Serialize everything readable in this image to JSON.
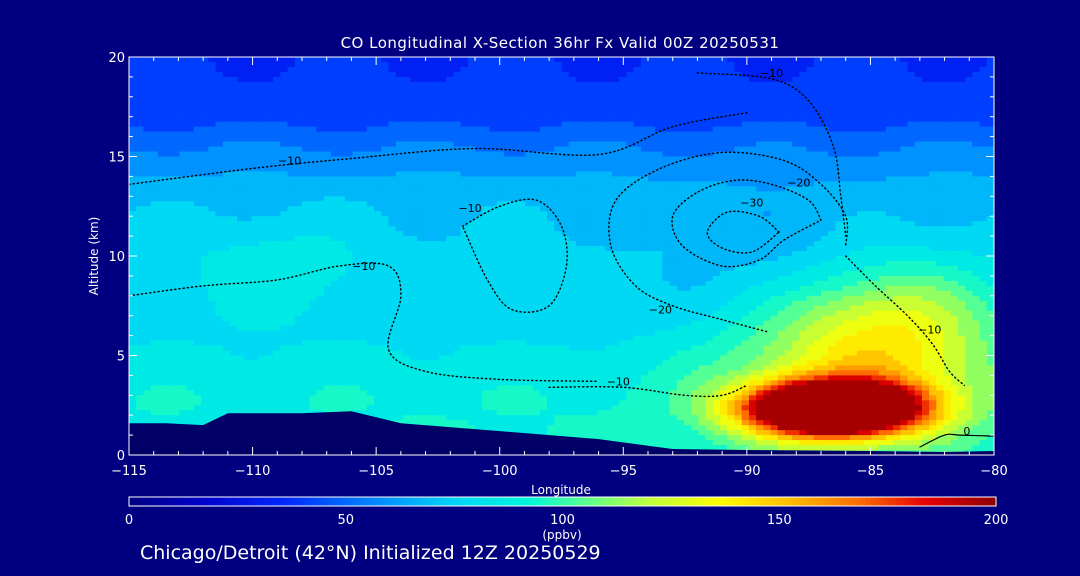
{
  "title": "CO Longitudinal X-Section 36hr  Fx Valid 00Z 20250531",
  "footer": "Chicago/Detroit (42°N) Initialized 12Z 20250529",
  "colors": {
    "background": "#000080",
    "terrain": "#000066",
    "axis": "#ffffff",
    "contour": "#000000"
  },
  "chart_data": {
    "type": "heatmap",
    "title": "CO Longitudinal X-Section 36hr  Fx Valid 00Z 20250531",
    "xlabel": "Longitude",
    "ylabel": "Altitude (km)",
    "xlim": [
      -115,
      -80
    ],
    "ylim": [
      0,
      20
    ],
    "xticks": [
      -115,
      -110,
      -105,
      -100,
      -95,
      -90,
      -85,
      -80
    ],
    "xtick_labels": [
      "−115",
      "−110",
      "−105",
      "−100",
      "−95",
      "−90",
      "−85",
      "−80"
    ],
    "yticks": [
      0,
      5,
      10,
      15,
      20
    ],
    "colorbar": {
      "label": "(ppbv)",
      "min": 0,
      "max": 200,
      "ticks": [
        0,
        50,
        100,
        150,
        200
      ]
    },
    "co_field": {
      "background_by_altitude_km": [
        [
          0,
          92
        ],
        [
          3,
          90
        ],
        [
          6,
          80
        ],
        [
          10,
          76
        ],
        [
          13,
          70
        ],
        [
          15,
          58
        ],
        [
          17,
          42
        ],
        [
          20,
          36
        ]
      ],
      "features": [
        {
          "center_lon": -86.5,
          "center_alt_km": 2.3,
          "peak_ppbv": 205,
          "radius_lon": 3.4,
          "radius_alt_km": 1.3
        },
        {
          "center_lon": -85.5,
          "center_alt_km": 4.5,
          "peak_ppbv": 45,
          "radius_lon": 5.5,
          "radius_alt_km": 3.5
        },
        {
          "center_lon": -84.0,
          "center_alt_km": 7.0,
          "peak_ppbv": 30,
          "radius_lon": 4.0,
          "radius_alt_km": 3.0
        },
        {
          "center_lon": -109.0,
          "center_alt_km": 9.5,
          "peak_ppbv": 12,
          "radius_lon": 3.5,
          "radius_alt_km": 2.2
        },
        {
          "center_lon": -89.0,
          "center_alt_km": 9.5,
          "peak_ppbv": -9,
          "radius_lon": 5.0,
          "radius_alt_km": 4.0
        }
      ]
    },
    "contours": [
      {
        "label": "-10",
        "label_lon": -108.5,
        "label_alt": 14.6,
        "points": [
          [
            -115,
            13.6
          ],
          [
            -110,
            14.4
          ],
          [
            -106,
            14.9
          ],
          [
            -101,
            15.4
          ],
          [
            -96,
            15.1
          ],
          [
            -93,
            16.5
          ],
          [
            -90,
            17.2
          ]
        ]
      },
      {
        "label": "-10",
        "label_lon": -101.2,
        "label_alt": 12.2,
        "points": [
          [
            -101.5,
            11.5
          ],
          [
            -100,
            12.5
          ],
          [
            -98.5,
            12.8
          ],
          [
            -97.5,
            11.5
          ],
          [
            -97.3,
            9.5
          ],
          [
            -98,
            7.5
          ],
          [
            -99.5,
            7.3
          ],
          [
            -100.5,
            8.8
          ],
          [
            -101.5,
            11.5
          ]
        ]
      },
      {
        "label": "-10",
        "label_lon": -105.5,
        "label_alt": 9.3,
        "points": [
          [
            -115,
            8.0
          ],
          [
            -112,
            8.5
          ],
          [
            -109,
            8.8
          ],
          [
            -106.5,
            9.5
          ],
          [
            -104.5,
            9.5
          ],
          [
            -104,
            8
          ],
          [
            -104.5,
            5.3
          ],
          [
            -103,
            4.2
          ],
          [
            -100,
            3.8
          ],
          [
            -96,
            3.7
          ]
        ]
      },
      {
        "label": "-10",
        "label_lon": -95.2,
        "label_alt": 3.5,
        "points": [
          [
            -98,
            3.4
          ],
          [
            -95,
            3.4
          ],
          [
            -92.5,
            3.0
          ],
          [
            -91,
            3.0
          ],
          [
            -90,
            3.5
          ]
        ]
      },
      {
        "label": "-20",
        "label_lon": -93.5,
        "label_alt": 7.1,
        "points": [
          [
            -89.2,
            6.2
          ],
          [
            -91,
            6.8
          ],
          [
            -93,
            7.5
          ],
          [
            -94.5,
            8.5
          ],
          [
            -95.5,
            10.5
          ],
          [
            -95.3,
            12.8
          ],
          [
            -93.5,
            14.4
          ],
          [
            -91,
            15.2
          ],
          [
            -88.5,
            14.8
          ],
          [
            -87,
            13.6
          ],
          [
            -86,
            12.0
          ],
          [
            -86,
            10.5
          ]
        ]
      },
      {
        "label": "-20",
        "label_lon": -87.9,
        "label_alt": 13.5,
        "points": [
          [
            -87,
            11.8
          ],
          [
            -87.5,
            12.8
          ],
          [
            -89,
            13.6
          ],
          [
            -90.5,
            13.8
          ],
          [
            -92,
            13.2
          ],
          [
            -93,
            12
          ],
          [
            -92.6,
            10.5
          ],
          [
            -91,
            9.5
          ],
          [
            -89.5,
            9.8
          ],
          [
            -88.5,
            10.8
          ],
          [
            -87,
            11.8
          ]
        ]
      },
      {
        "label": "-30",
        "label_lon": -89.8,
        "label_alt": 12.5,
        "points": [
          [
            -88.7,
            11.2
          ],
          [
            -89.5,
            12.0
          ],
          [
            -90.8,
            12.2
          ],
          [
            -91.6,
            11.2
          ],
          [
            -91,
            10.4
          ],
          [
            -89.8,
            10.2
          ],
          [
            -88.7,
            11.2
          ]
        ]
      },
      {
        "label": "-10",
        "label_lon": -89,
        "label_alt": 19.0,
        "points": [
          [
            -92,
            19.2
          ],
          [
            -89,
            18.9
          ],
          [
            -87.5,
            17.8
          ],
          [
            -86.5,
            15.5
          ],
          [
            -86.2,
            13
          ],
          [
            -86.0,
            11
          ]
        ]
      },
      {
        "label": "-10",
        "label_lon": -82.6,
        "label_alt": 6.1,
        "points": [
          [
            -86,
            10
          ],
          [
            -84.8,
            8.5
          ],
          [
            -83.5,
            7
          ],
          [
            -82.5,
            5.6
          ],
          [
            -81.8,
            4.2
          ],
          [
            -81.2,
            3.5
          ]
        ]
      },
      {
        "label": "0",
        "label_lon": -81.1,
        "label_alt": 1.0,
        "points": [
          [
            -83,
            0.4
          ],
          [
            -82,
            1.0
          ],
          [
            -81.4,
            1.0
          ],
          [
            -80,
            0.95
          ]
        ]
      }
    ],
    "terrain_km": [
      [
        -115,
        1.6
      ],
      [
        -113.5,
        1.6
      ],
      [
        -112,
        1.5
      ],
      [
        -111,
        2.1
      ],
      [
        -108,
        2.1
      ],
      [
        -106,
        2.2
      ],
      [
        -104,
        1.6
      ],
      [
        -100,
        1.2
      ],
      [
        -96,
        0.8
      ],
      [
        -93,
        0.3
      ],
      [
        -90,
        0.25
      ],
      [
        -85,
        0.2
      ],
      [
        -82,
        0.15
      ],
      [
        -80,
        0.2
      ]
    ]
  }
}
